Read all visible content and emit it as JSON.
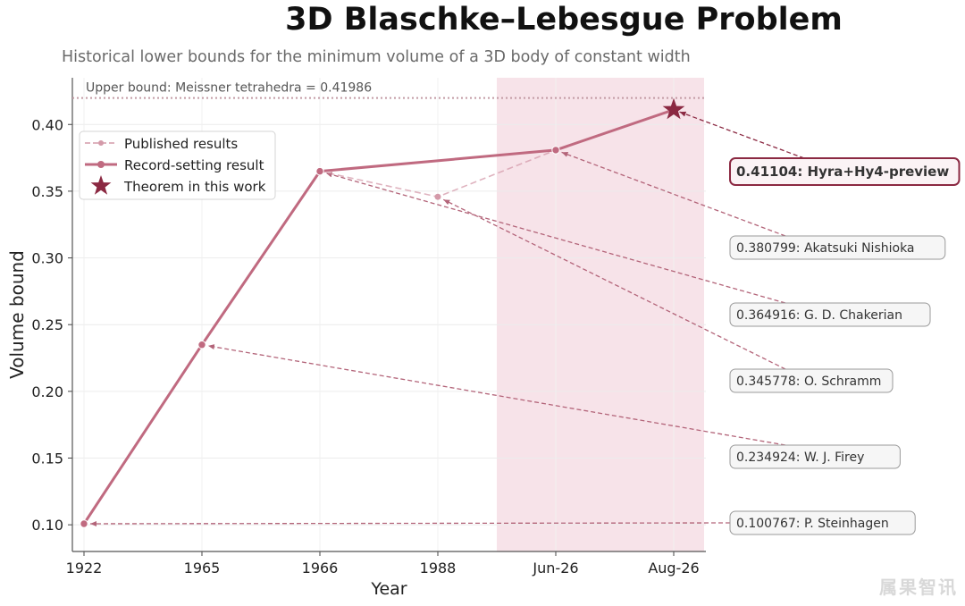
{
  "title": "3D Blaschke–Lebesgue Problem",
  "subtitle": "Historical lower bounds for the minimum volume of a 3D body of constant width",
  "watermark": "属果智讯",
  "colors": {
    "record": "#c06a80",
    "published": "#d49aa9",
    "star": "#8b2942",
    "highlight": "#f7e3e9",
    "upper": "#c29aa4",
    "arrow": "#b36479"
  },
  "chart_data": {
    "type": "line",
    "xlabel": "Year",
    "ylabel": "Volume bound",
    "categories": [
      "1922",
      "1965",
      "1966",
      "1988",
      "Jun-26",
      "Aug-26"
    ],
    "ylim": [
      0.08,
      0.435
    ],
    "yticks": [
      "0.10",
      "0.15",
      "0.20",
      "0.25",
      "0.30",
      "0.35",
      "0.40"
    ],
    "grid": true,
    "legend_position": "upper-left",
    "upper_bound": {
      "value": 0.41986,
      "label": "Upper bound: Meissner tetrahedra = 0.41986"
    },
    "highlight_region": [
      "Jun-26",
      "Aug-26"
    ],
    "series": [
      {
        "name": "Published results",
        "style": "dashed-light",
        "x": [
          "1922",
          "1965",
          "1966",
          "1988",
          "Jun-26"
        ],
        "values": [
          0.100767,
          0.234924,
          0.364916,
          0.345778,
          0.380799
        ]
      },
      {
        "name": "Record-setting result",
        "style": "solid",
        "x": [
          "1922",
          "1965",
          "1966",
          "Jun-26",
          "Aug-26"
        ],
        "values": [
          0.100767,
          0.234924,
          0.364916,
          0.380799,
          0.41104
        ]
      },
      {
        "name": "Theorem in this work",
        "style": "star",
        "x": [
          "Aug-26"
        ],
        "values": [
          0.41104
        ]
      }
    ],
    "annotations": [
      {
        "text": "0.41104: Hyra+Hy4-preview",
        "x": "Aug-26",
        "value": 0.41104,
        "emphasis": true
      },
      {
        "text": "0.380799: Akatsuki Nishioka",
        "x": "Jun-26",
        "value": 0.380799,
        "emphasis": false
      },
      {
        "text": "0.364916: G. D. Chakerian",
        "x": "1966",
        "value": 0.364916,
        "emphasis": false
      },
      {
        "text": "0.345778: O. Schramm",
        "x": "1988",
        "value": 0.345778,
        "emphasis": false
      },
      {
        "text": "0.234924: W. J. Firey",
        "x": "1965",
        "value": 0.234924,
        "emphasis": false
      },
      {
        "text": "0.100767: P. Steinhagen",
        "x": "1922",
        "value": 0.100767,
        "emphasis": false
      }
    ]
  }
}
